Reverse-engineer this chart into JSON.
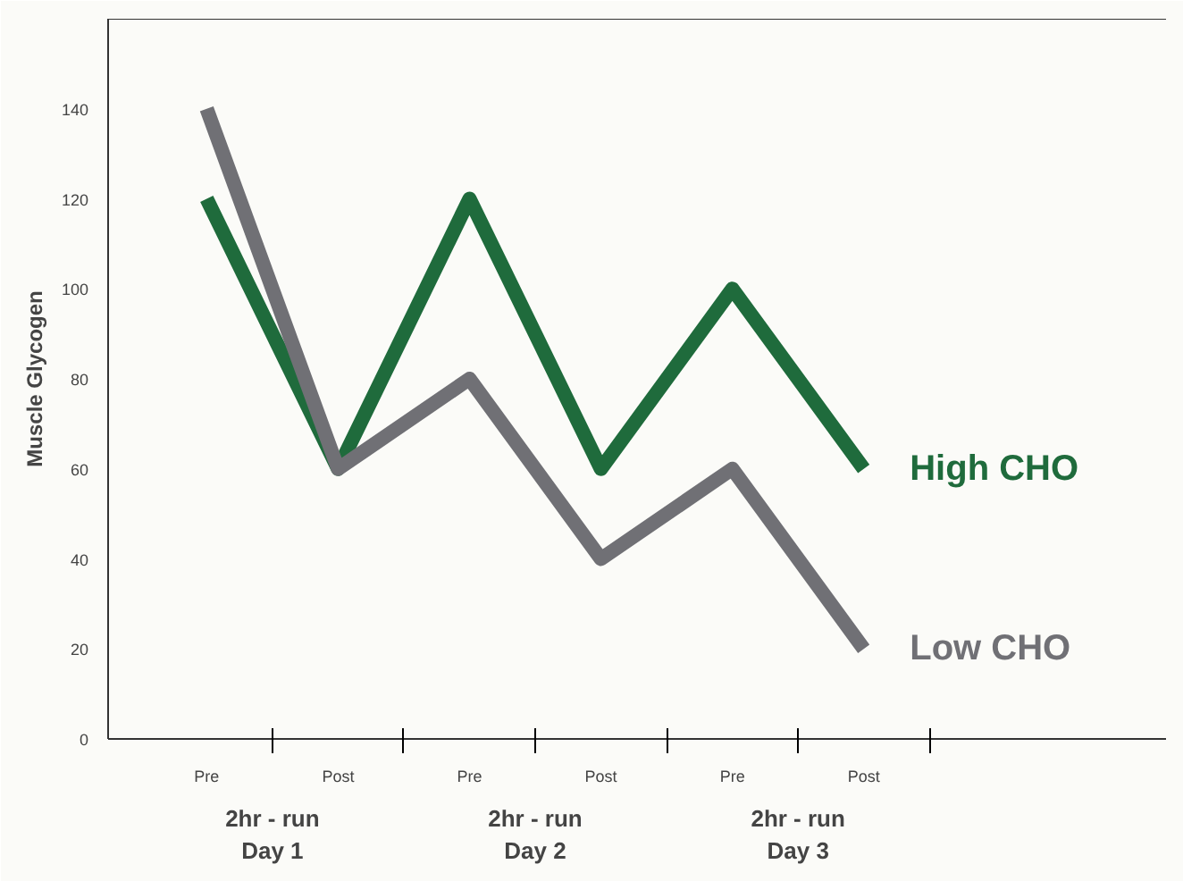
{
  "chart_data": {
    "type": "line",
    "ylabel": "Muscle Glycogen",
    "categories": [
      "Pre",
      "Post",
      "Pre",
      "Post",
      "Pre",
      "Post"
    ],
    "series": [
      {
        "name": "High CHO",
        "color": "#1f6b3c",
        "values": [
          120,
          60,
          120,
          60,
          100,
          60
        ]
      },
      {
        "name": "Low CHO",
        "color": "#707075",
        "values": [
          140,
          60,
          80,
          40,
          60,
          20
        ]
      }
    ],
    "ylim": [
      0,
      160
    ],
    "yticks": [
      0,
      20,
      40,
      60,
      80,
      100,
      120,
      140
    ],
    "annotations": [
      "2hr - run\nDay 1",
      "2hr - run\nDay 2",
      "2hr - run\nDay 3"
    ],
    "grid": false,
    "legend": false,
    "marker": "none",
    "line_style": "solid"
  }
}
